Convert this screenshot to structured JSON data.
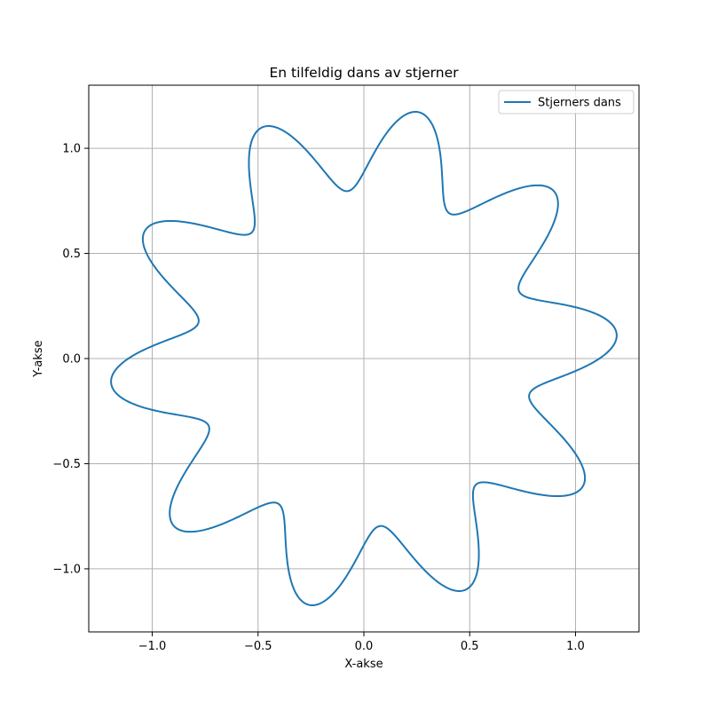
{
  "chart_data": {
    "type": "line",
    "title": "En tilfeldig dans av stjerner",
    "xlabel": "X-akse",
    "ylabel": "Y-akse",
    "xlim": [
      -1.3,
      1.3
    ],
    "ylim": [
      -1.3,
      1.3
    ],
    "xticks": [
      -1.0,
      -0.5,
      0.0,
      0.5,
      1.0
    ],
    "yticks": [
      -1.0,
      -0.5,
      0.0,
      0.5,
      1.0
    ],
    "xtick_labels": [
      "−1.0",
      "−0.5",
      "0.0",
      "0.5",
      "1.0"
    ],
    "ytick_labels": [
      "−1.0",
      "−0.5",
      "0.0",
      "0.5",
      "1.0"
    ],
    "grid": true,
    "legend_position": "top-right",
    "series": [
      {
        "name": "Stjerners dans",
        "color": "#1f77b4",
        "curve": {
          "kind": "polar",
          "radius_base": 1.0,
          "amplitude": 0.2,
          "lobes": 10,
          "phase_shift": 0.6,
          "theta_range": [
            0,
            6.283185307179586
          ],
          "samples": 1000
        }
      }
    ]
  }
}
